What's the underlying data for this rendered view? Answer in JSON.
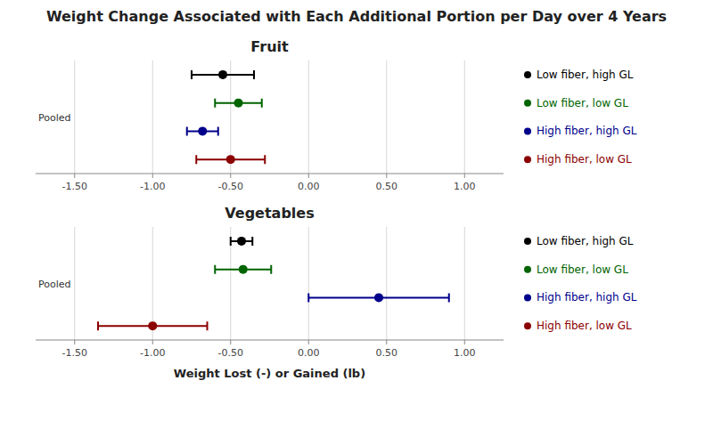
{
  "chart_data": [
    {
      "type": "dot",
      "title": "Weight Change Associated with Each Additional Portion per Day over 4 Years",
      "subtitle": "Fruit",
      "annotation": "Pooled",
      "orientation": "horizontal",
      "grid": true,
      "legend": "right",
      "xlim": [
        -1.75,
        1.25
      ],
      "xticks": [
        {
          "value": -1.5,
          "label": "-1.50"
        },
        {
          "value": -1.0,
          "label": "-1.00"
        },
        {
          "value": -0.5,
          "label": "-0.50"
        },
        {
          "value": 0.0,
          "label": "0.00"
        },
        {
          "value": 0.5,
          "label": "0.50"
        },
        {
          "value": 1.0,
          "label": "1.00"
        }
      ],
      "series": [
        {
          "name": "Low fiber, high GL",
          "color": "#000000",
          "values": [
            -0.55
          ],
          "errors": [
            0.2
          ]
        },
        {
          "name": "Low fiber, low GL",
          "color": "#006400",
          "values": [
            -0.45
          ],
          "errors": [
            0.15
          ]
        },
        {
          "name": "High fiber, high GL",
          "color": "#00008B",
          "values": [
            -0.68
          ],
          "errors": [
            0.1
          ]
        },
        {
          "name": "High fiber, low GL",
          "color": "#8B0000",
          "values": [
            -0.5
          ],
          "errors": [
            0.22
          ]
        }
      ]
    },
    {
      "type": "dot",
      "subtitle": "Vegetables",
      "annotation": "Pooled",
      "orientation": "horizontal",
      "grid": true,
      "legend": "right",
      "xlabel": "Weight Lost (-) or Gained  (lb)",
      "xlim": [
        -1.75,
        1.25
      ],
      "xticks": [
        {
          "value": -1.5,
          "label": "-1.50"
        },
        {
          "value": -1.0,
          "label": "-1.00"
        },
        {
          "value": -0.5,
          "label": "-0.50"
        },
        {
          "value": 0.0,
          "label": "0.00"
        },
        {
          "value": 0.5,
          "label": "0.50"
        },
        {
          "value": 1.0,
          "label": "1.00"
        }
      ],
      "series": [
        {
          "name": "Low fiber, high GL",
          "color": "#000000",
          "values": [
            -0.43
          ],
          "errors": [
            0.07
          ]
        },
        {
          "name": "Low fiber, low GL",
          "color": "#006400",
          "values": [
            -0.42
          ],
          "errors": [
            0.18
          ]
        },
        {
          "name": "High fiber, high GL",
          "color": "#00008B",
          "values": [
            0.45
          ],
          "errors": [
            0.45
          ]
        },
        {
          "name": "High fiber, low GL",
          "color": "#8B0000",
          "values": [
            -1.0
          ],
          "errors": [
            0.35
          ]
        }
      ]
    }
  ]
}
